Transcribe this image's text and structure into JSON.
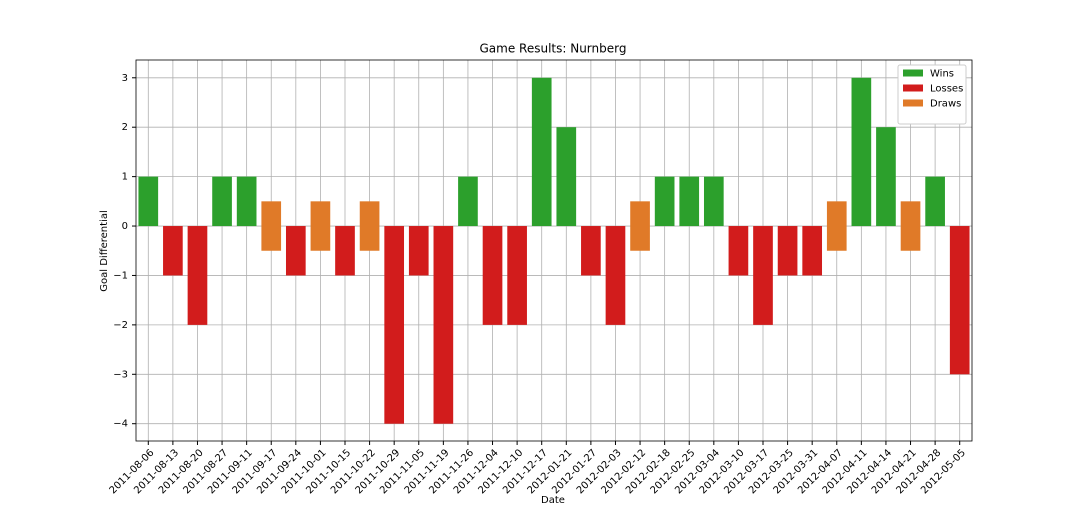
{
  "chart_data": {
    "type": "bar",
    "title": "Game Results: Nurnberg",
    "x_label": "Date",
    "y_label": "Goal Differential",
    "categories": [
      "2011-08-06",
      "2011-08-13",
      "2011-08-20",
      "2011-08-27",
      "2011-09-11",
      "2011-09-17",
      "2011-09-24",
      "2011-10-01",
      "2011-10-15",
      "2011-10-22",
      "2011-10-29",
      "2011-11-05",
      "2011-11-19",
      "2011-11-26",
      "2011-12-04",
      "2011-12-10",
      "2011-12-17",
      "2012-01-21",
      "2012-01-27",
      "2012-02-03",
      "2012-02-12",
      "2012-02-18",
      "2012-02-25",
      "2012-03-04",
      "2012-03-10",
      "2012-03-17",
      "2012-03-25",
      "2012-03-31",
      "2012-04-07",
      "2012-04-11",
      "2012-04-14",
      "2012-04-21",
      "2012-04-28",
      "2012-05-05"
    ],
    "series": [
      {
        "name": "Wins",
        "color": "#2ca02c",
        "values": [
          1,
          null,
          null,
          1,
          1,
          null,
          null,
          null,
          null,
          null,
          null,
          null,
          null,
          1,
          null,
          null,
          3,
          2,
          null,
          null,
          null,
          1,
          1,
          1,
          null,
          null,
          null,
          null,
          null,
          3,
          2,
          null,
          1,
          null
        ]
      },
      {
        "name": "Losses",
        "color": "#d21c1c",
        "values": [
          null,
          -1,
          -2,
          null,
          null,
          null,
          -1,
          null,
          -1,
          null,
          -4,
          -1,
          -4,
          null,
          -2,
          -2,
          null,
          null,
          -1,
          -2,
          null,
          null,
          null,
          null,
          -1,
          -2,
          -1,
          -1,
          null,
          null,
          null,
          null,
          null,
          -3
        ]
      },
      {
        "name": "Draws",
        "color": "#e07a28",
        "values": [
          null,
          null,
          null,
          null,
          null,
          0,
          null,
          0,
          null,
          0,
          null,
          null,
          null,
          null,
          null,
          null,
          null,
          null,
          null,
          null,
          0,
          null,
          null,
          null,
          null,
          null,
          null,
          null,
          0,
          null,
          null,
          0,
          null,
          null
        ]
      }
    ],
    "ylim": [
      -4.35,
      3.36
    ],
    "yticks": [
      {
        "value": -4,
        "label": "−4"
      },
      {
        "value": -3,
        "label": "−3"
      },
      {
        "value": -2,
        "label": "−2"
      },
      {
        "value": -1,
        "label": "−1"
      },
      0,
      1,
      2,
      3
    ],
    "grid": true,
    "legend": "upper right"
  }
}
